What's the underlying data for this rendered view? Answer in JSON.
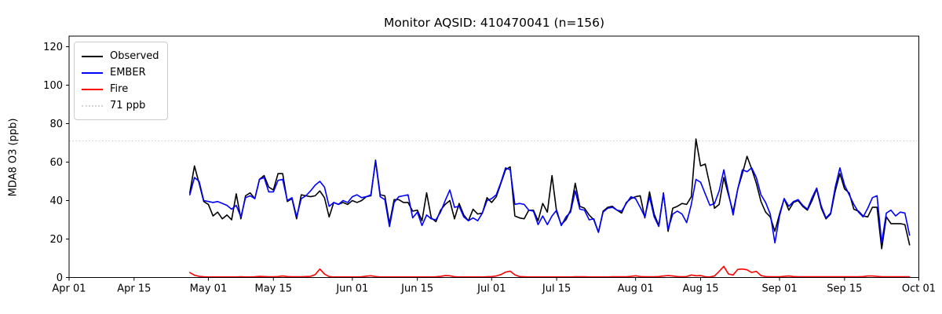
{
  "figure": {
    "title": "Monitor AQSID: 410470041 (n=156)",
    "ylabel": "MDA8 O3 (ppb)"
  },
  "legend": {
    "items": [
      {
        "label": "Observed",
        "color": "#000000",
        "style": "solid"
      },
      {
        "label": "EMBER",
        "color": "#0000ff",
        "style": "solid"
      },
      {
        "label": "Fire",
        "color": "#ff0000",
        "style": "solid"
      },
      {
        "label": "71 ppb",
        "color": "#d3d3d3",
        "style": "dotted"
      }
    ]
  },
  "chart_data": {
    "type": "line",
    "title": "Monitor AQSID: 410470041 (n=156)",
    "xlabel": "",
    "ylabel": "MDA8 O3 (ppb)",
    "grid": false,
    "legend_position": "upper left",
    "ylim": [
      0,
      125.5
    ],
    "yticks": [
      0,
      20,
      40,
      60,
      80,
      100,
      120
    ],
    "threshold_ppb": 71,
    "threshold_color": "#d3d3d3",
    "xlim_days_since_apr01": [
      0,
      183
    ],
    "xticks": [
      {
        "day": 0,
        "label": "Apr 01"
      },
      {
        "day": 14,
        "label": "Apr 15"
      },
      {
        "day": 30,
        "label": "May 01"
      },
      {
        "day": 44,
        "label": "May 15"
      },
      {
        "day": 61,
        "label": "Jun 01"
      },
      {
        "day": 75,
        "label": "Jun 15"
      },
      {
        "day": 91,
        "label": "Jul 01"
      },
      {
        "day": 105,
        "label": "Jul 15"
      },
      {
        "day": 122,
        "label": "Aug 01"
      },
      {
        "day": 136,
        "label": "Aug 15"
      },
      {
        "day": 153,
        "label": "Sep 01"
      },
      {
        "day": 167,
        "label": "Sep 15"
      },
      {
        "day": 183,
        "label": "Oct 01"
      }
    ],
    "n_points": 156,
    "data_start_day_since_apr01": 26,
    "data_start_label": "Apr 27",
    "data_end_label": "Sep 29",
    "series": [
      {
        "name": "Observed",
        "color": "#000000",
        "values": [
          44,
          58,
          49,
          39.5,
          38,
          32,
          34,
          30.5,
          32.5,
          30,
          43.5,
          30.5,
          42.5,
          44,
          41,
          51,
          53,
          47,
          45.5,
          54,
          54,
          39.5,
          41,
          30.5,
          43,
          42.5,
          42,
          42.5,
          45,
          41.5,
          31.5,
          39,
          38,
          39,
          38,
          40,
          39,
          40,
          42,
          42.5,
          61,
          43,
          42.5,
          28,
          40.5,
          40.5,
          39,
          39,
          34.5,
          35,
          29.5,
          44,
          31,
          29,
          35,
          38,
          40,
          30.5,
          38.5,
          32.5,
          29.5,
          35.5,
          33,
          33.5,
          41.5,
          39,
          42,
          49,
          56,
          57.5,
          32,
          31,
          30.5,
          35,
          35,
          29.5,
          38.5,
          34,
          53,
          34,
          27.5,
          30,
          35,
          49,
          37,
          36,
          32.5,
          30,
          23.5,
          34.5,
          36.5,
          37,
          35,
          33.5,
          39,
          41,
          42,
          42.5,
          31,
          44.5,
          33,
          27,
          44,
          24,
          36,
          37,
          38.5,
          38,
          42,
          72,
          58,
          59,
          48,
          36,
          38,
          52,
          43,
          34,
          46,
          54,
          63,
          56.5,
          49,
          39.5,
          34,
          31.5,
          24,
          33,
          41,
          35,
          39,
          40,
          37,
          35,
          40,
          46,
          36,
          30.5,
          33,
          45,
          54,
          46,
          44,
          35.5,
          34.5,
          32,
          31.5,
          36.5,
          36.5,
          15,
          31.5,
          28,
          28,
          28,
          27.5,
          17
        ]
      },
      {
        "name": "EMBER",
        "color": "#0000ff",
        "values": [
          43,
          52,
          50,
          40,
          39.5,
          39,
          39.5,
          38.5,
          37.5,
          35.5,
          37.5,
          31.5,
          41.5,
          42.5,
          41,
          51,
          52,
          44.5,
          44.5,
          50.5,
          51,
          40,
          41.5,
          31.5,
          41,
          42.5,
          45,
          48,
          50,
          47,
          37,
          39,
          38,
          40,
          39,
          42,
          43,
          41.5,
          42,
          43,
          60.5,
          42,
          40.5,
          26.5,
          39,
          42,
          42.5,
          43,
          31,
          34,
          27,
          32.5,
          30.5,
          30,
          34,
          40,
          45.5,
          36.5,
          37,
          31.5,
          29.5,
          31,
          29.5,
          33.5,
          40,
          41,
          43,
          49.5,
          57,
          56,
          38,
          38.5,
          38,
          35,
          34.5,
          27.5,
          32,
          27.5,
          32,
          35,
          27,
          31.5,
          34,
          45,
          35.5,
          35,
          30,
          30.5,
          23.5,
          34,
          36,
          36.5,
          35,
          34.5,
          38.5,
          42,
          41,
          36.5,
          31.5,
          42,
          31.5,
          26.5,
          43.5,
          25,
          33,
          34.5,
          33,
          28.5,
          38,
          51,
          49.5,
          43.5,
          37.5,
          38.5,
          45,
          56,
          44,
          32.5,
          46,
          56,
          55,
          57,
          52,
          43,
          39,
          33,
          18,
          32,
          41,
          37,
          39.5,
          40.5,
          37.5,
          35.5,
          41.5,
          46.5,
          37,
          31,
          33.5,
          47,
          57,
          48,
          43,
          38,
          34,
          31.5,
          36,
          41.5,
          42.5,
          18,
          33.5,
          35,
          32,
          34,
          33.5,
          22
        ]
      },
      {
        "name": "Fire",
        "color": "#ff0000",
        "values": [
          2.6,
          1.2,
          0.6,
          0.4,
          0.3,
          0.3,
          0.3,
          0.3,
          0.3,
          0.3,
          0.3,
          0.4,
          0.3,
          0.3,
          0.4,
          0.6,
          0.5,
          0.4,
          0.4,
          0.5,
          0.8,
          0.5,
          0.4,
          0.4,
          0.4,
          0.5,
          0.6,
          1.5,
          4.4,
          1.8,
          0.5,
          0.3,
          0.3,
          0.3,
          0.3,
          0.3,
          0.3,
          0.4,
          0.7,
          0.9,
          0.5,
          0.3,
          0.3,
          0.3,
          0.3,
          0.3,
          0.3,
          0.3,
          0.3,
          0.3,
          0.3,
          0.3,
          0.3,
          0.4,
          0.6,
          1.0,
          0.9,
          0.4,
          0.3,
          0.3,
          0.3,
          0.3,
          0.3,
          0.3,
          0.4,
          0.5,
          0.8,
          1.5,
          2.8,
          3.3,
          1.4,
          0.5,
          0.4,
          0.3,
          0.3,
          0.3,
          0.3,
          0.3,
          0.3,
          0.3,
          0.3,
          0.3,
          0.3,
          0.4,
          0.4,
          0.4,
          0.3,
          0.3,
          0.3,
          0.3,
          0.3,
          0.4,
          0.4,
          0.4,
          0.4,
          0.6,
          0.9,
          0.5,
          0.4,
          0.4,
          0.4,
          0.5,
          0.8,
          1.0,
          0.8,
          0.5,
          0.4,
          0.5,
          1.3,
          0.9,
          1.0,
          0.4,
          0.3,
          0.8,
          3.2,
          5.8,
          1.8,
          1.3,
          4.2,
          4.4,
          4.0,
          2.6,
          3.2,
          1.0,
          0.5,
          0.4,
          0.4,
          0.4,
          0.6,
          0.8,
          0.5,
          0.4,
          0.4,
          0.4,
          0.4,
          0.4,
          0.4,
          0.4,
          0.4,
          0.4,
          0.4,
          0.4,
          0.4,
          0.4,
          0.4,
          0.5,
          0.8,
          0.8,
          0.6,
          0.4,
          0.4,
          0.4,
          0.4,
          0.4,
          0.4,
          0.4
        ]
      }
    ]
  }
}
